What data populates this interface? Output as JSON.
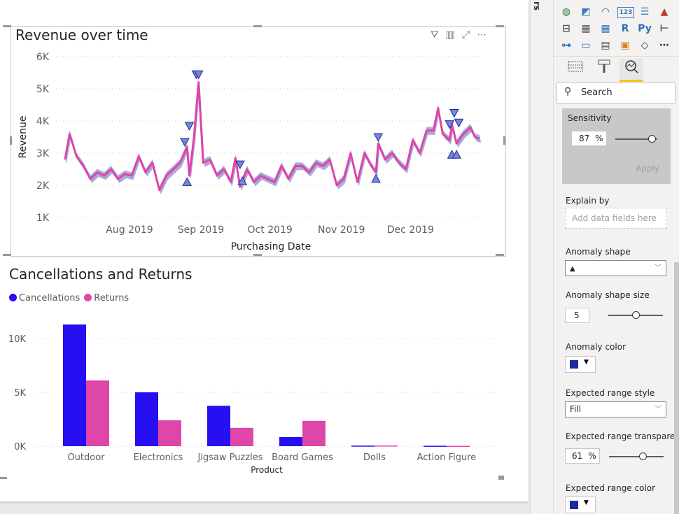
{
  "line_visual": {
    "title": "Revenue over time",
    "header_icons": [
      "filter-icon",
      "analytics-icon",
      "focus-mode-icon",
      "more-options-icon"
    ]
  },
  "bar_visual": {
    "title": "Cancellations and Returns"
  },
  "filters_pane": {
    "label": "rs"
  },
  "chart_data": [
    {
      "type": "line",
      "title": "Revenue over time",
      "xlabel": "Purchasing Date",
      "ylabel": "Revenue",
      "ylim": [
        1000,
        6000
      ],
      "yticks": [
        "1K",
        "2K",
        "3K",
        "4K",
        "5K",
        "6K"
      ],
      "ytick_values": [
        1000,
        2000,
        3000,
        4000,
        5000,
        6000
      ],
      "xticks": [
        "Aug 2019",
        "Sep 2019",
        "Oct 2019",
        "Nov 2019",
        "Dec 2019"
      ],
      "xtick_dates": [
        "2019-08-01",
        "2019-09-01",
        "2019-10-01",
        "2019-11-01",
        "2019-12-01"
      ],
      "grid": true,
      "line_color": "#e044a7",
      "expected_range_color": "#1a2aa0",
      "expected_range_transparency": 61,
      "points": [
        [
          "2019-07-04",
          2800
        ],
        [
          "2019-07-06",
          3600
        ],
        [
          "2019-07-09",
          2900
        ],
        [
          "2019-07-12",
          2600
        ],
        [
          "2019-07-15",
          2200
        ],
        [
          "2019-07-18",
          2400
        ],
        [
          "2019-07-21",
          2300
        ],
        [
          "2019-07-24",
          2500
        ],
        [
          "2019-07-27",
          2200
        ],
        [
          "2019-07-30",
          2350
        ],
        [
          "2019-08-02",
          2300
        ],
        [
          "2019-08-05",
          2900
        ],
        [
          "2019-08-08",
          2400
        ],
        [
          "2019-08-11",
          2700
        ],
        [
          "2019-08-14",
          1850
        ],
        [
          "2019-08-17",
          2300
        ],
        [
          "2019-08-20",
          2500
        ],
        [
          "2019-08-23",
          2700
        ],
        [
          "2019-08-26",
          3200
        ],
        [
          "2019-08-27",
          2300
        ],
        [
          "2019-08-29",
          3500
        ],
        [
          "2019-08-31",
          5200
        ],
        [
          "2019-09-02",
          2700
        ],
        [
          "2019-09-05",
          2800
        ],
        [
          "2019-09-08",
          2300
        ],
        [
          "2019-09-11",
          2500
        ],
        [
          "2019-09-14",
          2100
        ],
        [
          "2019-09-16",
          2850
        ],
        [
          "2019-09-18",
          1950
        ],
        [
          "2019-09-21",
          2500
        ],
        [
          "2019-09-24",
          2100
        ],
        [
          "2019-09-27",
          2300
        ],
        [
          "2019-09-30",
          2200
        ],
        [
          "2019-10-03",
          2100
        ],
        [
          "2019-10-06",
          2600
        ],
        [
          "2019-10-09",
          2200
        ],
        [
          "2019-10-12",
          2600
        ],
        [
          "2019-10-15",
          2600
        ],
        [
          "2019-10-18",
          2400
        ],
        [
          "2019-10-21",
          2700
        ],
        [
          "2019-10-24",
          2600
        ],
        [
          "2019-10-27",
          2800
        ],
        [
          "2019-10-30",
          2000
        ],
        [
          "2019-11-02",
          2200
        ],
        [
          "2019-11-05",
          3000
        ],
        [
          "2019-11-08",
          2100
        ],
        [
          "2019-11-11",
          3000
        ],
        [
          "2019-11-14",
          2600
        ],
        [
          "2019-11-16",
          2400
        ],
        [
          "2019-11-17",
          3300
        ],
        [
          "2019-11-20",
          2800
        ],
        [
          "2019-11-23",
          3000
        ],
        [
          "2019-11-26",
          2700
        ],
        [
          "2019-11-29",
          2500
        ],
        [
          "2019-12-02",
          3400
        ],
        [
          "2019-12-05",
          3000
        ],
        [
          "2019-12-08",
          3700
        ],
        [
          "2019-12-11",
          3700
        ],
        [
          "2019-12-13",
          4400
        ],
        [
          "2019-12-15",
          3600
        ],
        [
          "2019-12-18",
          3400
        ],
        [
          "2019-12-19",
          3900
        ],
        [
          "2019-12-21",
          3300
        ],
        [
          "2019-12-24",
          3600
        ],
        [
          "2019-12-27",
          3800
        ],
        [
          "2019-12-29",
          3500
        ],
        [
          "2019-12-31",
          3450
        ]
      ],
      "anomaly_color": "#1a2aa0",
      "anomalies": [
        {
          "date": "2019-08-25",
          "value": 3350,
          "direction": "down"
        },
        {
          "date": "2019-08-27",
          "value": 3850,
          "direction": "down"
        },
        {
          "date": "2019-08-26",
          "value": 2100,
          "direction": "up"
        },
        {
          "date": "2019-08-30",
          "value": 5450,
          "direction": "down"
        },
        {
          "date": "2019-08-31",
          "value": 5450,
          "direction": "down"
        },
        {
          "date": "2019-09-18",
          "value": 2650,
          "direction": "down"
        },
        {
          "date": "2019-09-19",
          "value": 2130,
          "direction": "up"
        },
        {
          "date": "2019-11-17",
          "value": 3500,
          "direction": "down"
        },
        {
          "date": "2019-11-16",
          "value": 2200,
          "direction": "up"
        },
        {
          "date": "2019-12-18",
          "value": 3900,
          "direction": "down"
        },
        {
          "date": "2019-12-20",
          "value": 4250,
          "direction": "down"
        },
        {
          "date": "2019-12-22",
          "value": 3950,
          "direction": "down"
        },
        {
          "date": "2019-12-19",
          "value": 2950,
          "direction": "up"
        },
        {
          "date": "2019-12-21",
          "value": 2950,
          "direction": "up"
        }
      ]
    },
    {
      "type": "bar",
      "title": "Cancellations and Returns",
      "xlabel": "Product",
      "ylabel": "",
      "ylim": [
        0,
        12000
      ],
      "yticks": [
        "0K",
        "5K",
        "10K"
      ],
      "ytick_values": [
        0,
        5000,
        10000
      ],
      "grid": true,
      "legend": "top-left",
      "categories": [
        "Outdoor",
        "Electronics",
        "Jigsaw Puzzles",
        "Board Games",
        "Dolls",
        "Action Figure"
      ],
      "series": [
        {
          "name": "Cancellations",
          "color": "#260ff0",
          "values": [
            11300,
            5000,
            3750,
            850,
            50,
            40
          ]
        },
        {
          "name": "Returns",
          "color": "#df46aa",
          "values": [
            6100,
            2400,
            1700,
            2350,
            60,
            30
          ]
        }
      ]
    }
  ],
  "viz_pane": {
    "gallery_icons": [
      "map-icon",
      "filled-map-icon",
      "gauge-icon",
      "card-icon",
      "multi-row-card-icon",
      "kpi-icon",
      "slicer-icon",
      "table-icon",
      "matrix-icon",
      "r-visual-icon",
      "python-visual-icon",
      "key-influencers-icon",
      "decomposition-tree-icon",
      "qna-icon",
      "smart-narrative-icon",
      "paginated-report-icon",
      "power-apps-icon",
      "more-visuals-icon"
    ],
    "gallery_glyphs": [
      "◍",
      "◩",
      "◠",
      "123",
      "☰",
      "▲",
      "⊟",
      "▦",
      "▦",
      "R",
      "Py",
      "⊢",
      "⊶",
      "▭",
      "▤",
      "▣",
      "◇",
      "⋯"
    ],
    "tabs": [
      "fields-tab",
      "format-tab",
      "analytics-tab"
    ],
    "search_placeholder": "Search",
    "sensitivity": {
      "label": "Sensitivity",
      "value": "87",
      "unit": "%",
      "percent": 87,
      "apply": "Apply"
    },
    "explain_by": {
      "label": "Explain by",
      "placeholder": "Add data fields here"
    },
    "anomaly_shape": {
      "label": "Anomaly shape",
      "value": "▲"
    },
    "anomaly_shape_size": {
      "label": "Anomaly shape size",
      "value": "5",
      "slider_fraction": 0.5
    },
    "anomaly_color": {
      "label": "Anomaly color",
      "value": "#1a2aa0"
    },
    "expected_range_style": {
      "label": "Expected range style",
      "value": "Fill"
    },
    "expected_range_transparency": {
      "label": "Expected range transpare...",
      "value": "61",
      "unit": "%",
      "percent": 61
    },
    "expected_range_color": {
      "label": "Expected range color",
      "value": "#1a2aa0"
    }
  }
}
